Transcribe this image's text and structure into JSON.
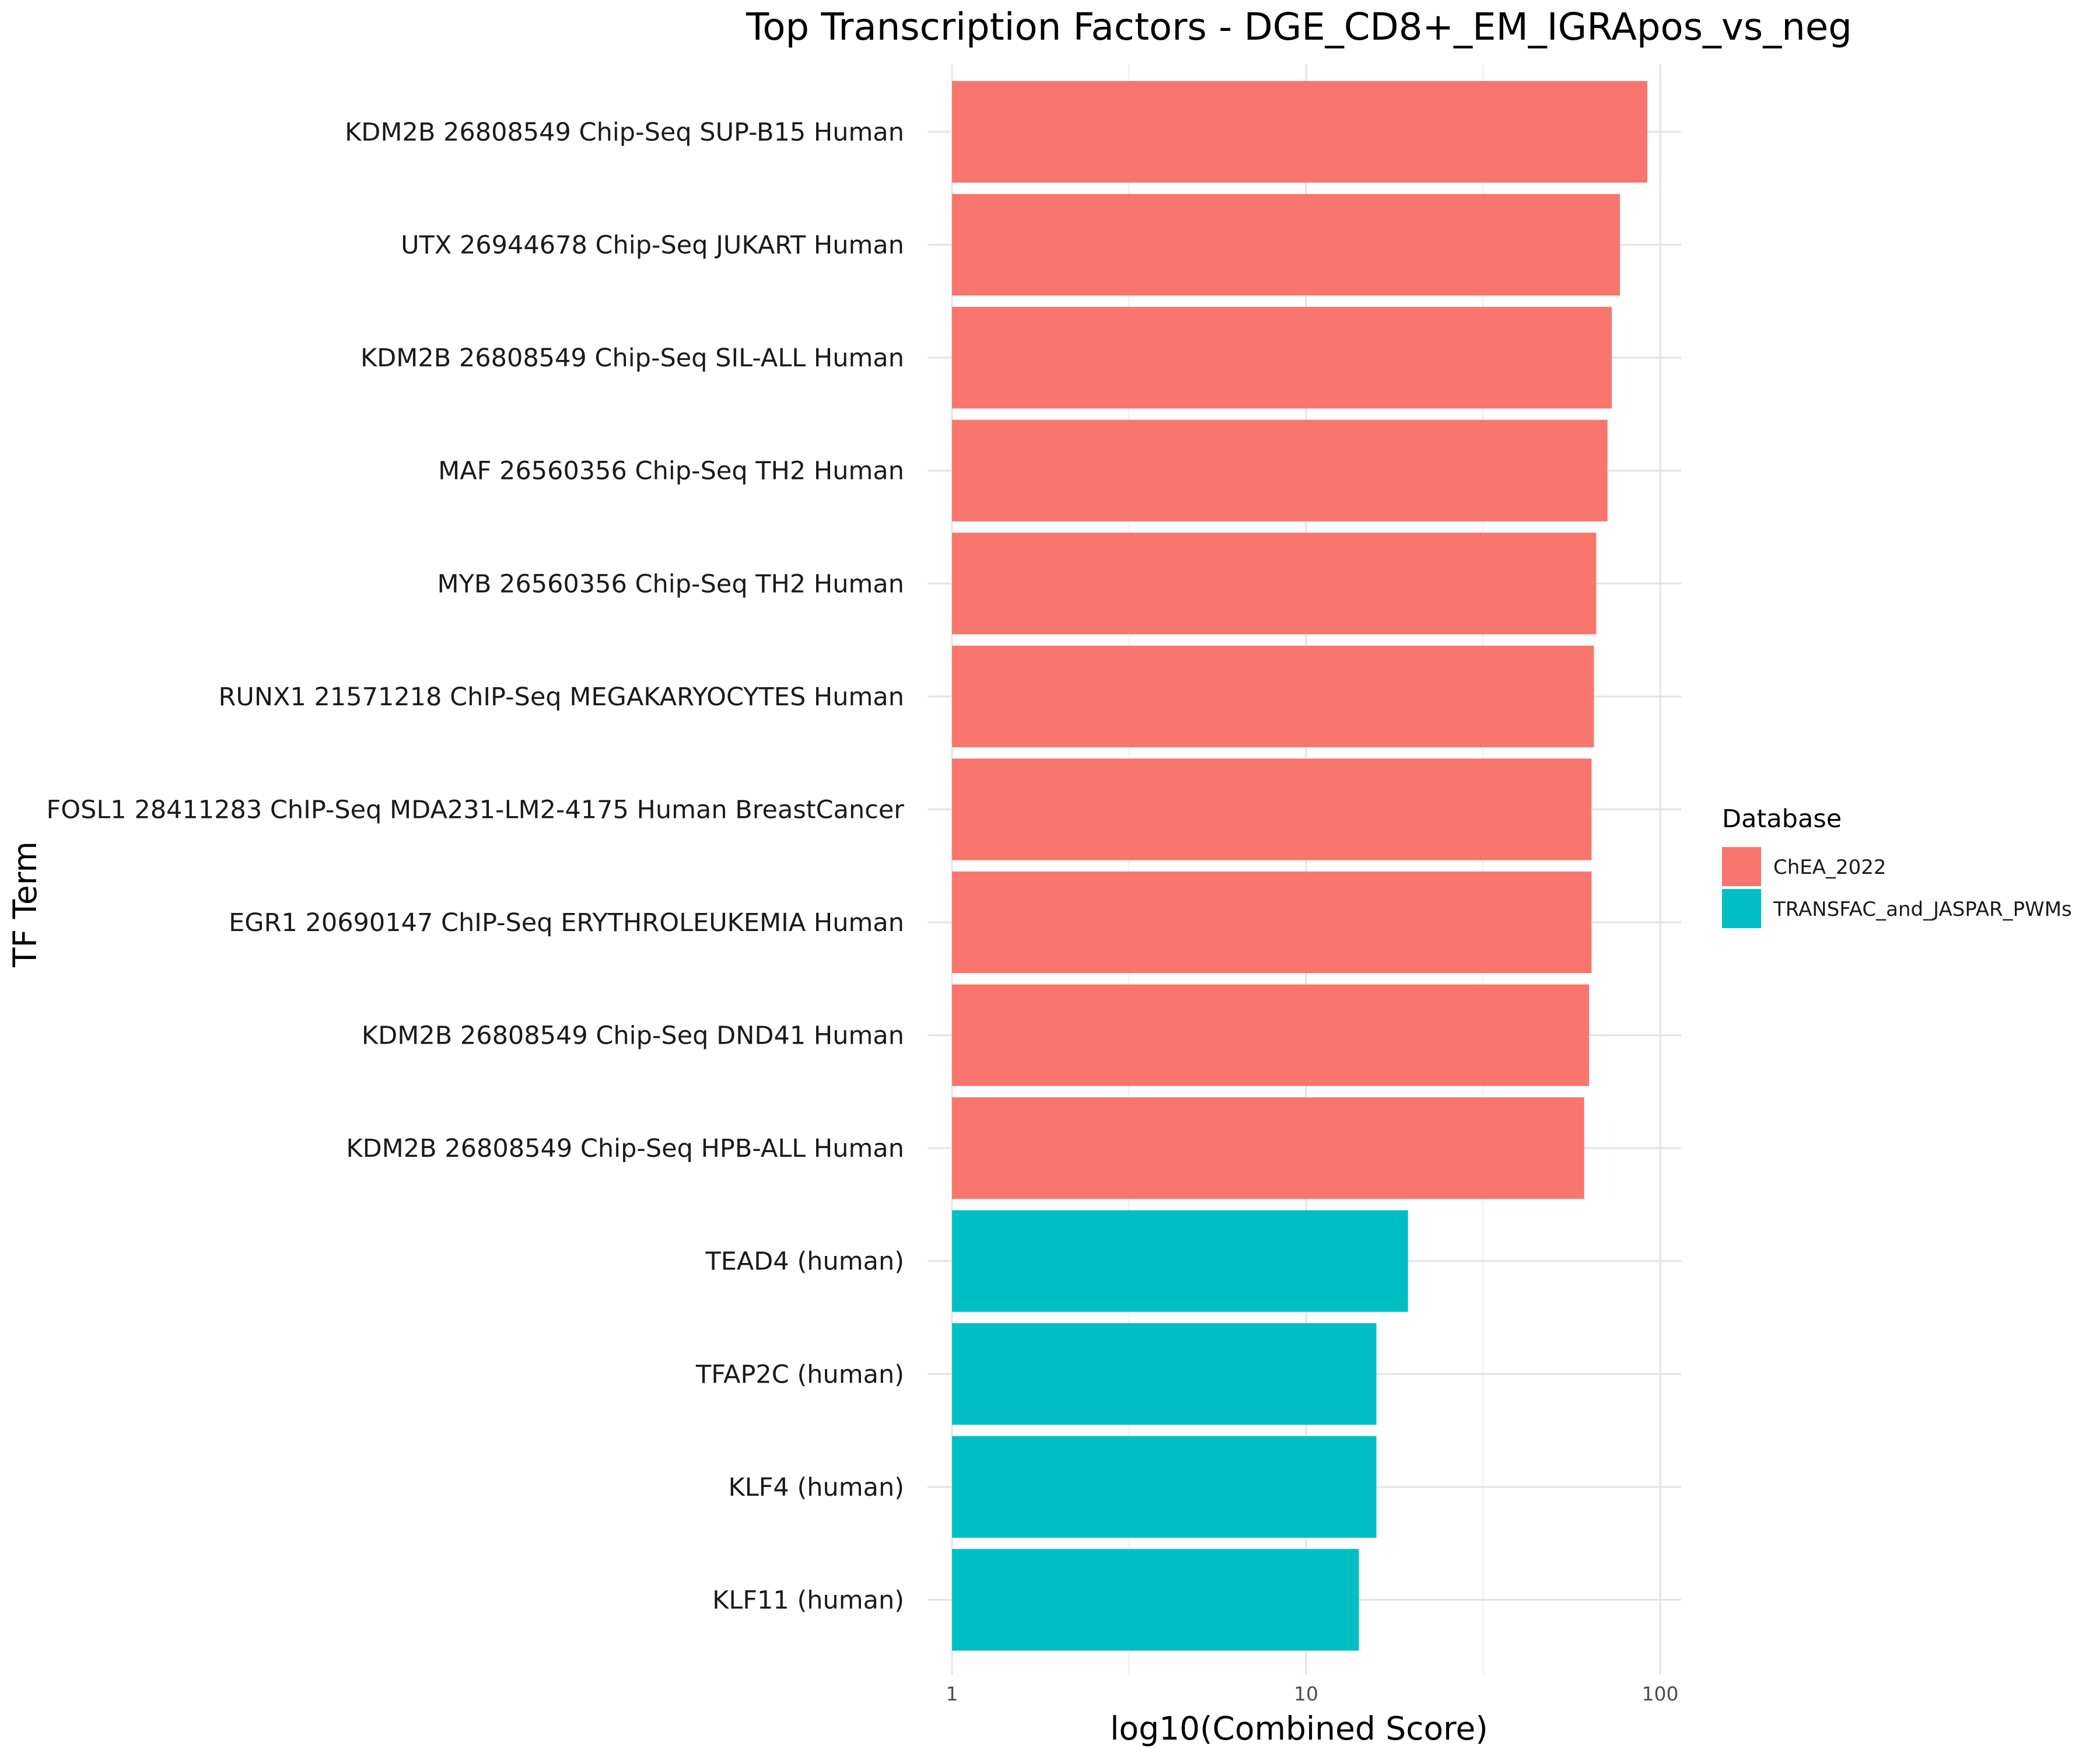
{
  "chart_data": {
    "type": "bar",
    "orientation": "horizontal",
    "title": "Top Transcription Factors - DGE_CD8+_EM_IGRApos_vs_neg",
    "xlabel": "log10(Combined Score)",
    "ylabel": "TF Term",
    "x_scale": "log10",
    "xlim": [
      1,
      115
    ],
    "x_ticks": [
      "1",
      "10",
      "100"
    ],
    "grid": true,
    "legend": {
      "title": "Database",
      "placement": "right",
      "entries": [
        {
          "name": "ChEA_2022",
          "color": "#F8766D"
        },
        {
          "name": "TRANSFAC_and_JASPAR_PWMs",
          "color": "#00BFC4"
        }
      ]
    },
    "categories": [
      "KDM2B 26808549 Chip-Seq SUP-B15 Human",
      "UTX 26944678 Chip-Seq JUKART Human",
      "KDM2B 26808549 Chip-Seq SIL-ALL Human",
      "MAF 26560356 Chip-Seq TH2 Human",
      "MYB 26560356 Chip-Seq TH2 Human",
      "RUNX1 21571218 ChIP-Seq MEGAKARYOCYTES Human",
      "FOSL1 28411283 ChIP-Seq MDA231-LM2-4175 Human BreastCancer",
      "EGR1 20690147 ChIP-Seq ERYTHROLEUKEMIA Human",
      "KDM2B 26808549 Chip-Seq DND41 Human",
      "KDM2B 26808549 Chip-Seq HPB-ALL Human",
      "TEAD4 (human)",
      "TFAP2C (human)",
      "KLF4 (human)",
      "KLF11 (human)"
    ],
    "values": [
      92,
      77,
      73,
      71,
      66,
      65,
      64,
      64,
      63,
      61,
      19.4,
      15.8,
      15.8,
      14.1
    ],
    "database": [
      "ChEA_2022",
      "ChEA_2022",
      "ChEA_2022",
      "ChEA_2022",
      "ChEA_2022",
      "ChEA_2022",
      "ChEA_2022",
      "ChEA_2022",
      "ChEA_2022",
      "ChEA_2022",
      "TRANSFAC_and_JASPAR_PWMs",
      "TRANSFAC_and_JASPAR_PWMs",
      "TRANSFAC_and_JASPAR_PWMs",
      "TRANSFAC_and_JASPAR_PWMs"
    ]
  }
}
